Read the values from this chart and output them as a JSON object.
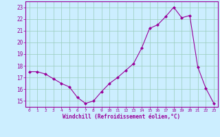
{
  "x": [
    0,
    1,
    2,
    3,
    4,
    5,
    6,
    7,
    8,
    9,
    10,
    11,
    12,
    13,
    14,
    15,
    16,
    17,
    18,
    19,
    20,
    21,
    22,
    23
  ],
  "y": [
    17.5,
    17.5,
    17.3,
    16.9,
    16.5,
    16.2,
    15.3,
    14.8,
    15.0,
    15.8,
    16.5,
    17.0,
    17.6,
    18.2,
    19.5,
    21.2,
    21.5,
    22.2,
    23.0,
    22.1,
    22.3,
    17.9,
    16.1,
    14.8
  ],
  "line_color": "#990099",
  "marker": "D",
  "marker_size": 2,
  "bg_color": "#cceeff",
  "grid_color": "#99ccbb",
  "xlabel": "Windchill (Refroidissement éolien,°C)",
  "xlabel_color": "#990099",
  "tick_color": "#990099",
  "ylim": [
    14.5,
    23.5
  ],
  "yticks": [
    15,
    16,
    17,
    18,
    19,
    20,
    21,
    22,
    23
  ],
  "xlim": [
    -0.5,
    23.5
  ],
  "xticks": [
    0,
    1,
    2,
    3,
    4,
    5,
    6,
    7,
    8,
    9,
    10,
    11,
    12,
    13,
    14,
    15,
    16,
    17,
    18,
    19,
    20,
    21,
    22,
    23
  ]
}
